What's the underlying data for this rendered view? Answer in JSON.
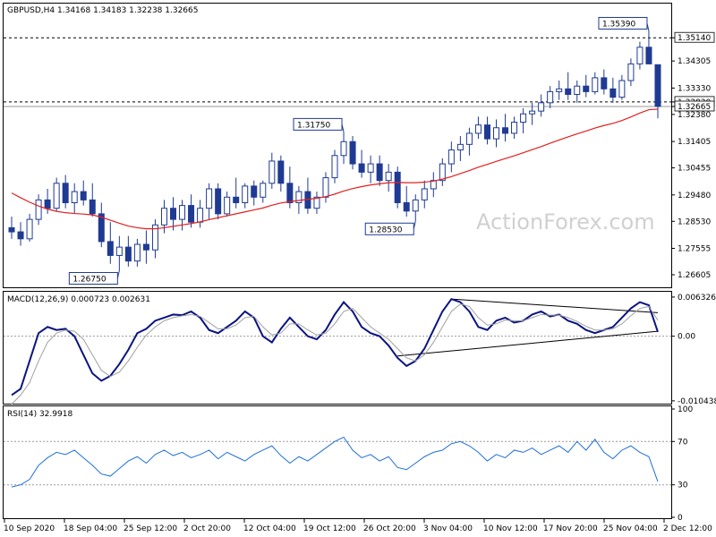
{
  "chart_data": [
    {
      "type": "candlestick",
      "title": "GBPUSD,H4  1.34168 1.34183 1.32238 1.32665",
      "symbol": "GBPUSD",
      "timeframe": "H4",
      "watermark": "ActionForex.com",
      "ylim": [
        1.2625,
        1.3605
      ],
      "y_ticks": [
        "1.35140",
        "1.34305",
        "1.33330",
        "1.32830",
        "1.32665",
        "1.32380",
        "1.31405",
        "1.30455",
        "1.29480",
        "1.28530",
        "1.27555",
        "1.26605"
      ],
      "x_ticks": [
        "10 Sep 2020",
        "18 Sep 04:00",
        "25 Sep 12:00",
        "2 Oct 20:00",
        "12 Oct 04:00",
        "19 Oct 12:00",
        "26 Oct 20:00",
        "3 Nov 04:00",
        "10 Nov 12:00",
        "17 Nov 20:00",
        "25 Nov 04:00",
        "2 Dec 12:00"
      ],
      "ohlc": [
        [
          1.283,
          1.287,
          1.279,
          1.2815
        ],
        [
          1.2815,
          1.285,
          1.2765,
          1.279
        ],
        [
          1.279,
          1.288,
          1.278,
          1.286
        ],
        [
          1.286,
          1.295,
          1.284,
          1.293
        ],
        [
          1.293,
          1.297,
          1.288,
          1.29
        ],
        [
          1.29,
          1.301,
          1.289,
          1.299
        ],
        [
          1.299,
          1.302,
          1.29,
          1.292
        ],
        [
          1.292,
          1.299,
          1.288,
          1.296
        ],
        [
          1.296,
          1.3,
          1.291,
          1.293
        ],
        [
          1.293,
          1.299,
          1.287,
          1.288
        ],
        [
          1.288,
          1.292,
          1.276,
          1.278
        ],
        [
          1.278,
          1.285,
          1.27,
          1.273
        ],
        [
          1.273,
          1.28,
          1.2675,
          1.276
        ],
        [
          1.276,
          1.28,
          1.269,
          1.271
        ],
        [
          1.271,
          1.279,
          1.269,
          1.277
        ],
        [
          1.277,
          1.282,
          1.27,
          1.275
        ],
        [
          1.275,
          1.286,
          1.272,
          1.284
        ],
        [
          1.284,
          1.293,
          1.281,
          1.29
        ],
        [
          1.29,
          1.294,
          1.282,
          1.286
        ],
        [
          1.286,
          1.293,
          1.282,
          1.291
        ],
        [
          1.291,
          1.295,
          1.283,
          1.285
        ],
        [
          1.285,
          1.293,
          1.283,
          1.29
        ],
        [
          1.29,
          1.299,
          1.286,
          1.297
        ],
        [
          1.297,
          1.299,
          1.286,
          1.288
        ],
        [
          1.288,
          1.296,
          1.287,
          1.294
        ],
        [
          1.294,
          1.301,
          1.29,
          1.292
        ],
        [
          1.292,
          1.299,
          1.29,
          1.298
        ],
        [
          1.298,
          1.3,
          1.291,
          1.294
        ],
        [
          1.294,
          1.3,
          1.292,
          1.299
        ],
        [
          1.299,
          1.31,
          1.297,
          1.307
        ],
        [
          1.307,
          1.309,
          1.296,
          1.299
        ],
        [
          1.299,
          1.305,
          1.29,
          1.292
        ],
        [
          1.292,
          1.298,
          1.288,
          1.296
        ],
        [
          1.296,
          1.301,
          1.288,
          1.29
        ],
        [
          1.29,
          1.296,
          1.288,
          1.294
        ],
        [
          1.294,
          1.303,
          1.292,
          1.301
        ],
        [
          1.301,
          1.311,
          1.299,
          1.309
        ],
        [
          1.309,
          1.3175,
          1.306,
          1.314
        ],
        [
          1.314,
          1.316,
          1.304,
          1.306
        ],
        [
          1.306,
          1.311,
          1.301,
          1.303
        ],
        [
          1.303,
          1.309,
          1.299,
          1.306
        ],
        [
          1.306,
          1.309,
          1.298,
          1.3
        ],
        [
          1.3,
          1.306,
          1.296,
          1.303
        ],
        [
          1.303,
          1.305,
          1.29,
          1.292
        ],
        [
          1.292,
          1.298,
          1.287,
          1.289
        ],
        [
          1.289,
          1.295,
          1.2853,
          1.293
        ],
        [
          1.293,
          1.3,
          1.29,
          1.297
        ],
        [
          1.297,
          1.303,
          1.294,
          1.3
        ],
        [
          1.3,
          1.308,
          1.298,
          1.306
        ],
        [
          1.306,
          1.314,
          1.303,
          1.311
        ],
        [
          1.311,
          1.316,
          1.307,
          1.313
        ],
        [
          1.313,
          1.319,
          1.309,
          1.317
        ],
        [
          1.317,
          1.323,
          1.315,
          1.32
        ],
        [
          1.32,
          1.323,
          1.313,
          1.315
        ],
        [
          1.315,
          1.322,
          1.312,
          1.319
        ],
        [
          1.319,
          1.324,
          1.314,
          1.317
        ],
        [
          1.317,
          1.323,
          1.315,
          1.321
        ],
        [
          1.321,
          1.326,
          1.317,
          1.324
        ],
        [
          1.324,
          1.328,
          1.32,
          1.325
        ],
        [
          1.325,
          1.331,
          1.323,
          1.328
        ],
        [
          1.328,
          1.334,
          1.326,
          1.332
        ],
        [
          1.332,
          1.336,
          1.329,
          1.333
        ],
        [
          1.333,
          1.339,
          1.329,
          1.331
        ],
        [
          1.331,
          1.336,
          1.328,
          1.334
        ],
        [
          1.334,
          1.338,
          1.33,
          1.332
        ],
        [
          1.332,
          1.339,
          1.331,
          1.337
        ],
        [
          1.337,
          1.34,
          1.331,
          1.333
        ],
        [
          1.333,
          1.337,
          1.328,
          1.33
        ],
        [
          1.33,
          1.338,
          1.329,
          1.336
        ],
        [
          1.336,
          1.344,
          1.334,
          1.342
        ],
        [
          1.342,
          1.35,
          1.34,
          1.348
        ],
        [
          1.348,
          1.3539,
          1.342,
          1.342
        ],
        [
          1.3417,
          1.3418,
          1.3224,
          1.3267
        ]
      ],
      "sma": [
        1.2955,
        1.2938,
        1.2922,
        1.2908,
        1.2897,
        1.2889,
        1.2884,
        1.2881,
        1.2879,
        1.2876,
        1.2868,
        1.2857,
        1.2846,
        1.2836,
        1.283,
        1.2826,
        1.2826,
        1.283,
        1.2835,
        1.284,
        1.2845,
        1.2851,
        1.2859,
        1.2866,
        1.2873,
        1.288,
        1.2887,
        1.2894,
        1.2901,
        1.2911,
        1.2919,
        1.2924,
        1.2928,
        1.2932,
        1.2936,
        1.2942,
        1.2951,
        1.2962,
        1.2971,
        1.2978,
        1.2984,
        1.2988,
        1.2992,
        1.2993,
        1.2992,
        1.2992,
        1.2994,
        1.2998,
        1.3005,
        1.3014,
        1.3025,
        1.3036,
        1.3048,
        1.3058,
        1.3069,
        1.3079,
        1.3089,
        1.31,
        1.3111,
        1.3122,
        1.3134,
        1.3146,
        1.3157,
        1.3168,
        1.3178,
        1.3189,
        1.3198,
        1.3206,
        1.3216,
        1.3229,
        1.3243,
        1.3255,
        1.3257
      ],
      "price_labels": [
        {
          "text": "1.35390",
          "value": 1.3539,
          "index": 71
        },
        {
          "text": "1.31750",
          "value": 1.3175,
          "index": 37
        },
        {
          "text": "1.28530",
          "value": 1.2853,
          "index": 45
        },
        {
          "text": "1.26750",
          "value": 1.2675,
          "index": 12
        }
      ],
      "h_levels": [
        {
          "name": "resistance",
          "value": 1.3514,
          "label": "1.35140"
        },
        {
          "name": "support",
          "value": 1.3283,
          "label": "1.32830"
        }
      ],
      "current_price": {
        "value": 1.32665,
        "label": "1.32665"
      },
      "colors": {
        "candle": "#1f3a93",
        "sma": "#e02020",
        "level": "#000000",
        "current": "#999999"
      }
    },
    {
      "type": "line",
      "title": "MACD(12,26,9) 0.000723 0.002631",
      "ylim": [
        -0.0106,
        0.0066
      ],
      "y_ticks": [
        "0.006326",
        "0.00",
        "-0.010438"
      ],
      "series": [
        {
          "name": "MACD",
          "color": "#0b1480",
          "values": [
            -0.0095,
            -0.0085,
            -0.004,
            0.0005,
            0.0015,
            0.001,
            0.0012,
            0.0,
            -0.003,
            -0.006,
            -0.0072,
            -0.0064,
            -0.0045,
            -0.0022,
            0.0005,
            0.0012,
            0.0025,
            0.003,
            0.0035,
            0.0034,
            0.004,
            0.003,
            0.001,
            0.0005,
            0.0015,
            0.0025,
            0.004,
            0.003,
            0.0,
            -0.001,
            0.0012,
            0.003,
            0.0015,
            0.0,
            -0.0005,
            0.001,
            0.0035,
            0.0055,
            0.004,
            0.0015,
            0.0005,
            0.0,
            -0.0015,
            -0.0035,
            -0.0048,
            -0.004,
            -0.002,
            0.001,
            0.004,
            0.006,
            0.0055,
            0.004,
            0.0015,
            0.001,
            0.0025,
            0.003,
            0.0022,
            0.0025,
            0.0035,
            0.004,
            0.0032,
            0.0035,
            0.0025,
            0.002,
            0.001,
            0.0005,
            0.001,
            0.0015,
            0.003,
            0.0045,
            0.0055,
            0.005,
            0.0007
          ]
        },
        {
          "name": "Signal",
          "color": "#a0a0a0",
          "values": [
            -0.011,
            -0.0095,
            -0.0075,
            -0.004,
            -0.001,
            0.0005,
            0.001,
            0.0008,
            -0.0005,
            -0.003,
            -0.0055,
            -0.0065,
            -0.0058,
            -0.004,
            -0.0018,
            0.0002,
            0.0015,
            0.0025,
            0.003,
            0.0033,
            0.0035,
            0.0032,
            0.0022,
            0.0012,
            0.0012,
            0.0018,
            0.003,
            0.0032,
            0.0015,
            0.0002,
            0.0005,
            0.002,
            0.002,
            0.001,
            0.0002,
            0.0005,
            0.002,
            0.004,
            0.0045,
            0.003,
            0.0015,
            0.0005,
            -0.0005,
            -0.002,
            -0.0035,
            -0.004,
            -0.003,
            -0.001,
            0.0015,
            0.004,
            0.0052,
            0.0048,
            0.003,
            0.0018,
            0.002,
            0.0026,
            0.0025,
            0.0025,
            0.003,
            0.0035,
            0.0034,
            0.0034,
            0.003,
            0.0024,
            0.0016,
            0.001,
            0.001,
            0.0012,
            0.002,
            0.0033,
            0.0045,
            0.0048,
            0.0026
          ]
        }
      ],
      "trendlines": [
        {
          "name": "upper",
          "from": [
            49,
            0.006
          ],
          "to": [
            72,
            0.0038
          ]
        },
        {
          "name": "lower",
          "from": [
            43,
            -0.0032
          ],
          "to": [
            72,
            0.0008
          ]
        }
      ]
    },
    {
      "type": "line",
      "title": "RSI(14) 32.9918",
      "ylim": [
        0,
        100
      ],
      "y_ticks": [
        "100",
        "70",
        "30",
        "0"
      ],
      "levels": [
        70,
        30
      ],
      "series": [
        {
          "name": "RSI",
          "color": "#1e6fd9",
          "values": [
            28,
            30,
            35,
            48,
            55,
            60,
            58,
            62,
            55,
            48,
            40,
            38,
            45,
            52,
            56,
            50,
            58,
            62,
            57,
            60,
            55,
            58,
            62,
            54,
            60,
            56,
            52,
            58,
            62,
            66,
            57,
            50,
            56,
            52,
            58,
            64,
            70,
            74,
            62,
            55,
            58,
            52,
            56,
            46,
            44,
            50,
            56,
            60,
            62,
            68,
            70,
            66,
            60,
            52,
            58,
            55,
            62,
            60,
            64,
            58,
            62,
            66,
            60,
            70,
            62,
            72,
            60,
            54,
            62,
            66,
            60,
            56,
            33
          ]
        }
      ]
    }
  ]
}
